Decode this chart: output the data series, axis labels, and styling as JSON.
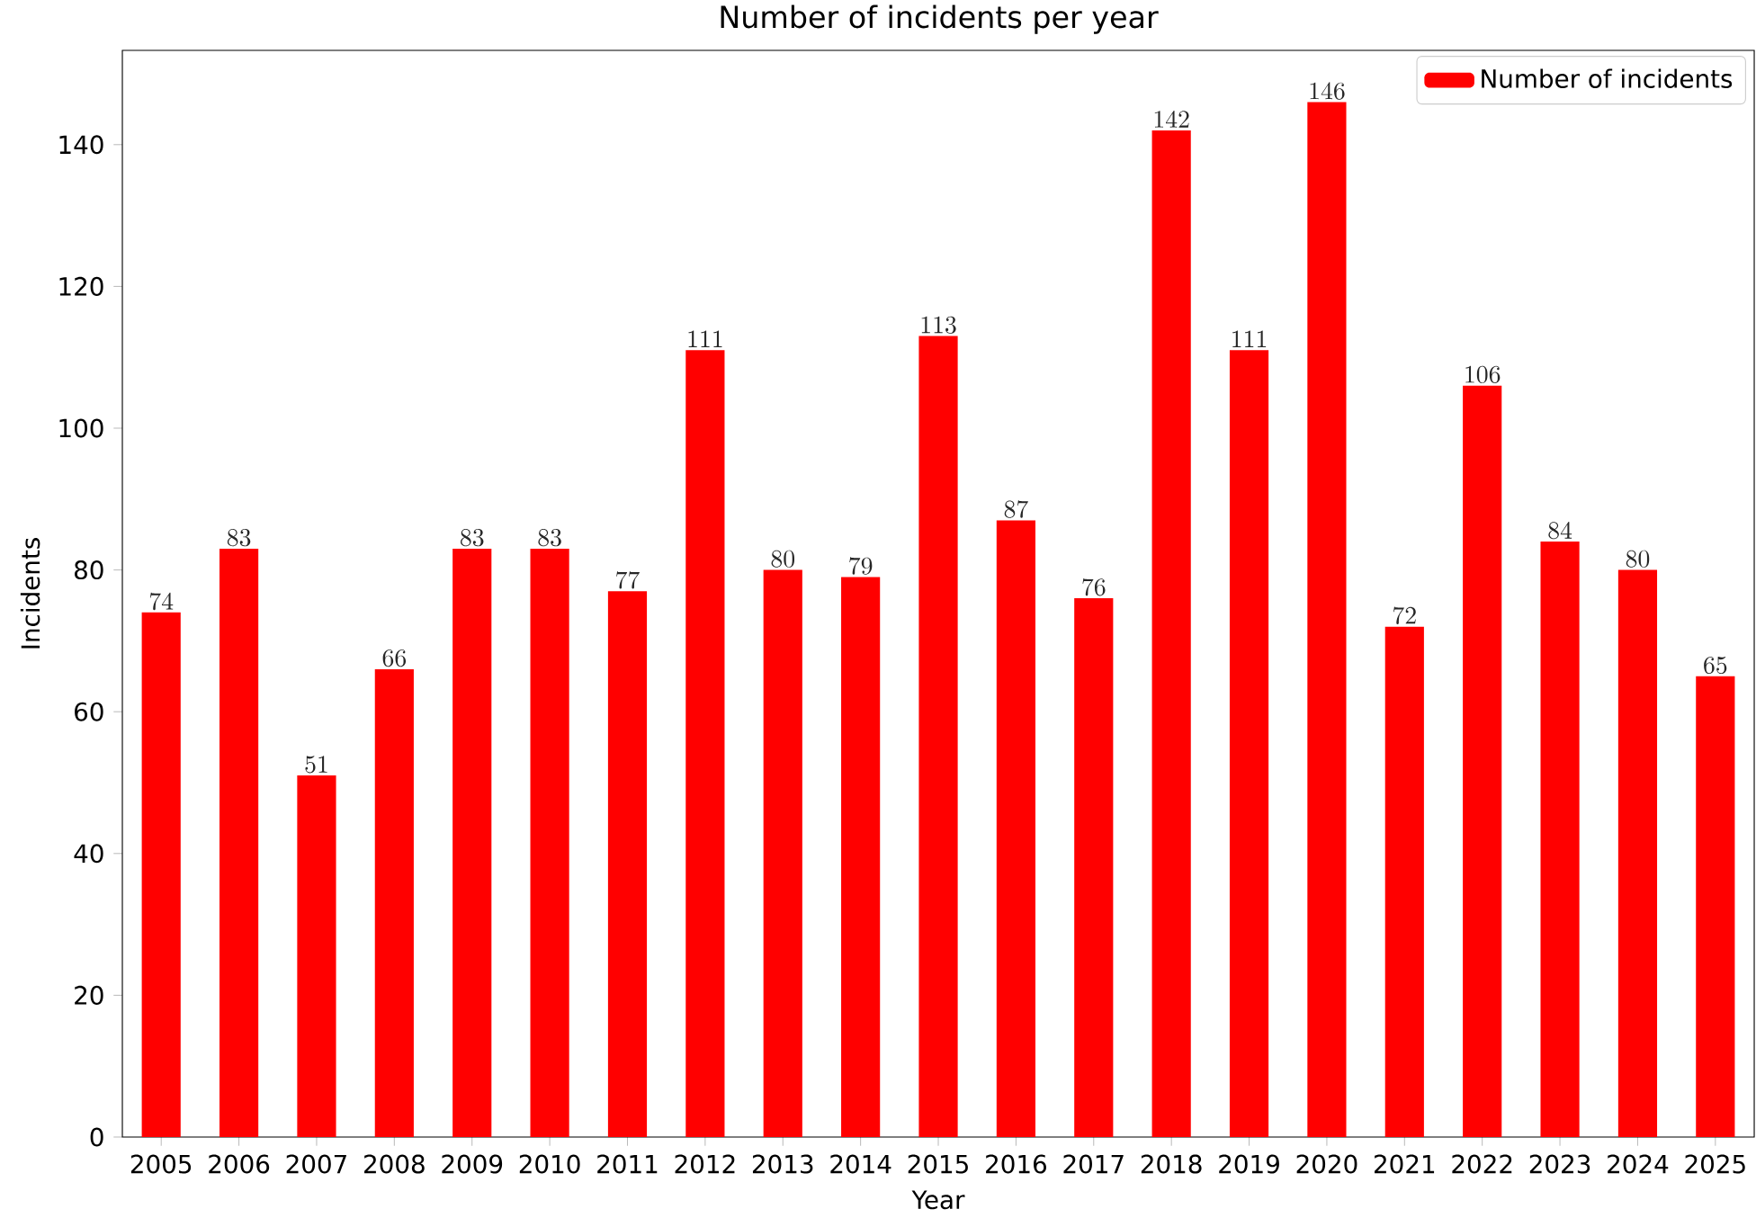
{
  "chart_data": {
    "type": "bar",
    "title": "Number of incidents per year",
    "xlabel": "Year",
    "ylabel": "Incidents",
    "categories": [
      "2005",
      "2006",
      "2007",
      "2008",
      "2009",
      "2010",
      "2011",
      "2012",
      "2013",
      "2014",
      "2015",
      "2016",
      "2017",
      "2018",
      "2019",
      "2020",
      "2021",
      "2022",
      "2023",
      "2024",
      "2025"
    ],
    "series": [
      {
        "name": "Number of incidents",
        "color": "#ff0000",
        "values": [
          74,
          83,
          51,
          66,
          83,
          83,
          77,
          111,
          80,
          79,
          113,
          87,
          76,
          142,
          111,
          146,
          72,
          106,
          84,
          80,
          65
        ]
      }
    ],
    "ylim": [
      0,
      153.3
    ],
    "yticks": [
      0,
      20,
      40,
      60,
      80,
      100,
      120,
      140
    ],
    "data_labels": true,
    "legend": "top right",
    "grid": false
  }
}
